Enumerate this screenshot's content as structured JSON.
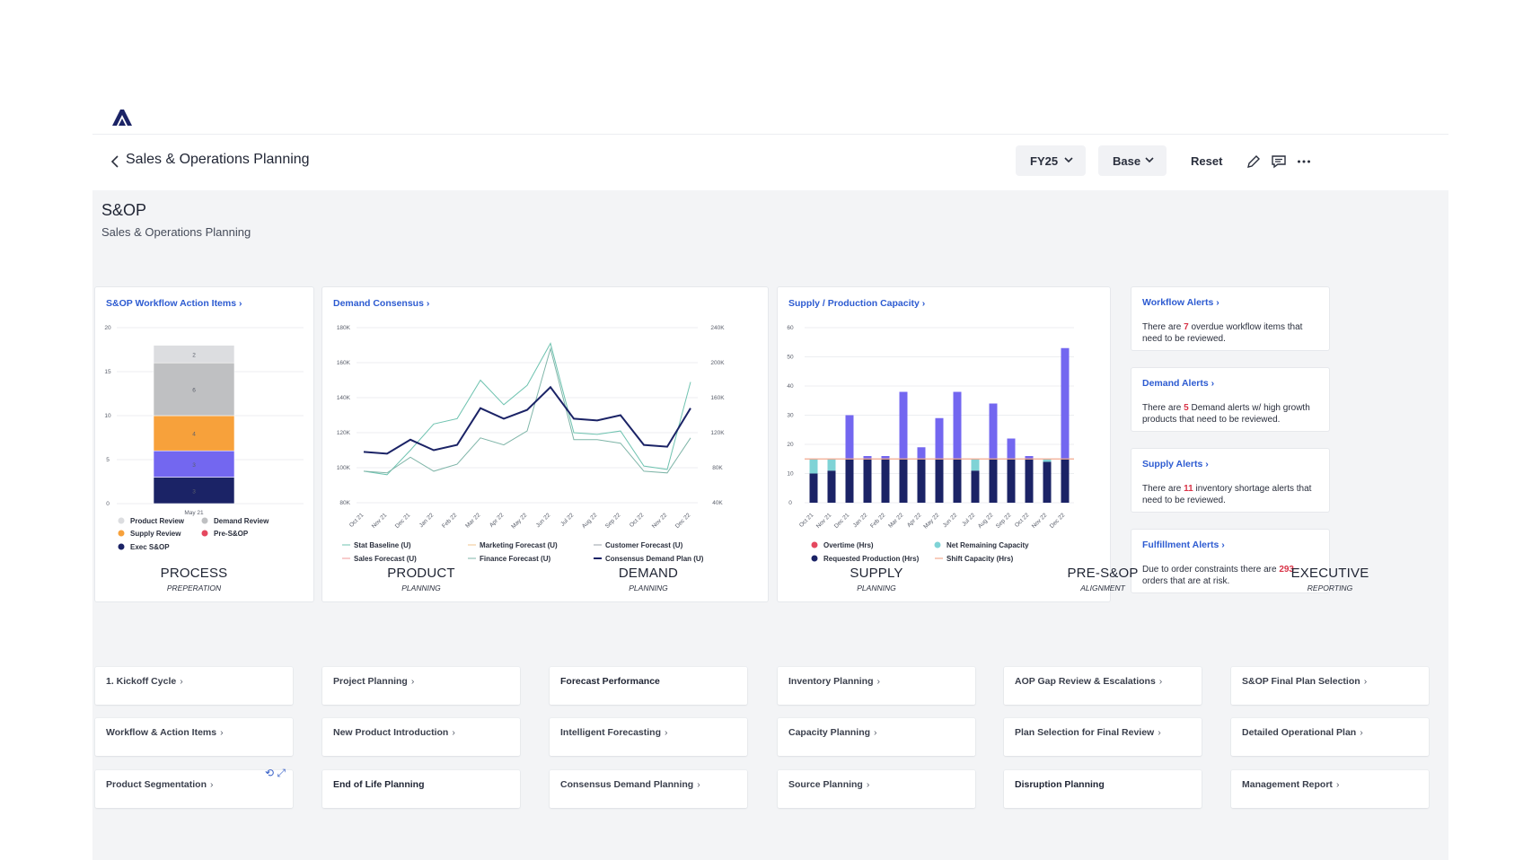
{
  "header": {
    "title": "Sales & Operations Planning",
    "fy_label": "FY25",
    "scenario_label": "Base",
    "reset_label": "Reset"
  },
  "page": {
    "title": "S&OP",
    "subtitle": "Sales & Operations Planning"
  },
  "cards": {
    "workflow": {
      "title": "S&OP Workflow Action Items"
    },
    "demand": {
      "title": "Demand Consensus"
    },
    "supply": {
      "title": "Supply / Production Capacity"
    }
  },
  "alerts": [
    {
      "title": "Workflow Alerts",
      "pre": "There are ",
      "num": "7",
      "post": " overdue workflow items that need to be reviewed."
    },
    {
      "title": "Demand Alerts",
      "pre": "There are ",
      "num": "5",
      "post": " Demand alerts w/ high growth products that need to be reviewed."
    },
    {
      "title": "Supply Alerts",
      "pre": "There are ",
      "num": "11",
      "post": " inventory shortage alerts that need to be reviewed."
    },
    {
      "title": "Fulfillment Alerts",
      "pre": "Due to order constraints there are ",
      "num": "293",
      "post": " orders that are at risk."
    }
  ],
  "columns": [
    {
      "title": "PROCESS",
      "sub": "PREPERATION",
      "items": [
        "1. Kickoff Cycle",
        "Workflow & Action Items",
        "Product Segmentation"
      ]
    },
    {
      "title": "PRODUCT",
      "sub": "PLANNING",
      "items": [
        "Project Planning",
        "New Product Introduction",
        "End of Life Planning"
      ]
    },
    {
      "title": "DEMAND",
      "sub": "PLANNING",
      "items": [
        "Forecast Performance",
        "Intelligent Forecasting",
        "Consensus Demand Planning"
      ]
    },
    {
      "title": "SUPPLY",
      "sub": "PLANNING",
      "items": [
        "Inventory Planning",
        "Capacity Planning",
        "Source Planning"
      ]
    },
    {
      "title": "PRE-S&OP",
      "sub": "ALIGNMENT",
      "items": [
        "AOP Gap Review & Escalations",
        "Plan Selection for Final Review",
        "Disruption Planning"
      ]
    },
    {
      "title": "EXECUTIVE",
      "sub": "REPORTING",
      "items": [
        "S&OP Final Plan Selection",
        "Detailed Operational Plan",
        "Management Report"
      ]
    }
  ],
  "colors": {
    "accent": "#2d5bd1",
    "alert_red": "#d93448",
    "navy": "#1b2366",
    "purple": "#7367f0",
    "orange": "#f7a13b",
    "gray": "#bfc0c2",
    "light_gray": "#dcdde0",
    "teal": "#7fd3d6",
    "salmon": "#f2a98f"
  },
  "chart_data": [
    {
      "type": "bar",
      "stacked": true,
      "categories": [
        "May 21"
      ],
      "ylim": [
        0,
        20
      ],
      "yticks": [
        0,
        5,
        10,
        15,
        20
      ],
      "series": [
        {
          "name": "Exec S&OP",
          "values": [
            3
          ],
          "color": "#1b2366"
        },
        {
          "name": "Pre-S&OP",
          "values": [
            3
          ],
          "color": "#7367f0"
        },
        {
          "name": "Supply Review",
          "values": [
            4
          ],
          "color": "#f7a13b"
        },
        {
          "name": "Demand Review",
          "values": [
            6
          ],
          "color": "#bfc0c2"
        },
        {
          "name": "Product Review",
          "values": [
            2
          ],
          "color": "#dcdde0"
        }
      ],
      "legend": [
        {
          "name": "Product Review",
          "color": "#dcdde0"
        },
        {
          "name": "Demand Review",
          "color": "#bfc0c2"
        },
        {
          "name": "Supply Review",
          "color": "#f7a13b"
        },
        {
          "name": "Pre-S&OP",
          "color": "#e5485f"
        },
        {
          "name": "Exec S&OP",
          "color": "#1b2366"
        }
      ]
    },
    {
      "type": "line",
      "x": [
        "Oct 21",
        "Nov 21",
        "Dec 21",
        "Jan 22",
        "Feb 22",
        "Mar 22",
        "Apr 22",
        "May 22",
        "Jun 22",
        "Jul 22",
        "Aug 22",
        "Sep 22",
        "Oct 22",
        "Nov 22",
        "Dec 22"
      ],
      "ylim_left": [
        80000,
        180000
      ],
      "yticks_left": [
        "80K",
        "100K",
        "120K",
        "140K",
        "160K",
        "180K"
      ],
      "ylim_right": [
        40000,
        240000
      ],
      "yticks_right": [
        "40K",
        "80K",
        "120K",
        "160K",
        "200K",
        "240K"
      ],
      "series": [
        {
          "name": "Stat Baseline (U)",
          "color": "#6fc3b0",
          "values": [
            98000,
            96000,
            110000,
            125000,
            128000,
            150000,
            136000,
            147000,
            171000,
            120000,
            119000,
            121000,
            101000,
            99000,
            149000
          ]
        },
        {
          "name": "Finance Forecast (U)",
          "color": "#7fb5a8",
          "values": [
            98000,
            97000,
            106000,
            98000,
            102000,
            117000,
            113000,
            121000,
            168000,
            116000,
            116000,
            114000,
            98000,
            97000,
            117000
          ]
        },
        {
          "name": "Consensus Demand Plan (U)",
          "color": "#1b2366",
          "values": [
            109000,
            108000,
            116000,
            110000,
            113000,
            134000,
            128000,
            133000,
            146000,
            128000,
            127000,
            130000,
            113000,
            112000,
            134000
          ]
        }
      ],
      "legend": [
        {
          "name": "Stat Baseline (U)",
          "color": "#6fc3b0"
        },
        {
          "name": "Marketing Forecast (U)",
          "color": "#f2c48f"
        },
        {
          "name": "Customer Forecast (U)",
          "color": "#9aa0a8"
        },
        {
          "name": "Sales Forecast (U)",
          "color": "#f29a9a"
        },
        {
          "name": "Finance Forecast (U)",
          "color": "#7fb5a8"
        },
        {
          "name": "Consensus Demand Plan (U)",
          "color": "#1b2366"
        }
      ]
    },
    {
      "type": "bar",
      "stacked": true,
      "x": [
        "Oct 21",
        "Nov 21",
        "Dec 21",
        "Jan 22",
        "Feb 22",
        "Mar 22",
        "Apr 22",
        "May 22",
        "Jun 22",
        "Jul 22",
        "Aug 22",
        "Sep 22",
        "Oct 22",
        "Nov 22",
        "Dec 22"
      ],
      "ylim": [
        0,
        60
      ],
      "yticks": [
        0,
        10,
        20,
        30,
        40,
        50,
        60
      ],
      "series": [
        {
          "name": "Requested Production (Hrs)",
          "color": "#1b2366",
          "values": [
            10,
            11,
            15,
            15,
            15,
            15,
            15,
            15,
            15,
            11,
            15,
            15,
            15,
            14,
            15
          ]
        },
        {
          "name": "Net Remaining Capacity",
          "color": "#7fd3d6",
          "values": [
            5,
            4,
            0,
            0,
            0,
            0,
            0,
            0,
            0,
            4,
            0,
            0,
            0,
            1,
            0
          ]
        },
        {
          "name": "Overtime (Hrs)",
          "color": "#7367f0",
          "values": [
            0,
            0,
            15,
            1,
            1,
            23,
            4,
            14,
            23,
            0,
            19,
            7,
            1,
            0,
            38
          ]
        }
      ],
      "shift_capacity": 15,
      "legend": [
        {
          "name": "Overtime (Hrs)",
          "color": "#e5485f"
        },
        {
          "name": "Net Remaining Capacity",
          "color": "#7fd3d6"
        },
        {
          "name": "Requested Production (Hrs)",
          "color": "#1b2366"
        },
        {
          "name": "Shift Capacity (Hrs)",
          "color": "#f2a98f"
        }
      ]
    }
  ]
}
